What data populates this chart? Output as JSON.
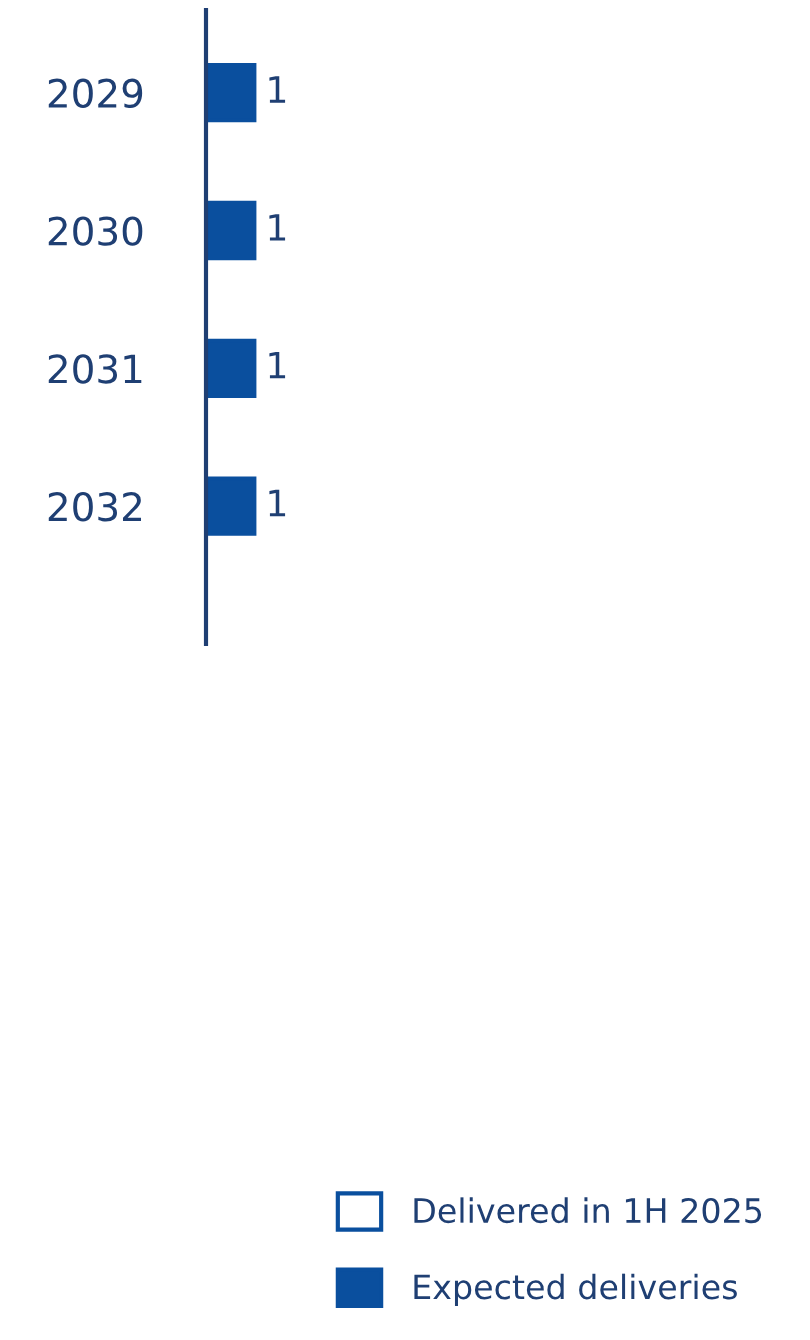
{
  "chart_data": {
    "type": "bar",
    "orientation": "horizontal",
    "categories": [
      "2029",
      "2030",
      "2031",
      "2032"
    ],
    "series": [
      {
        "name": "Delivered in 1H 2025",
        "color": "#ffffff",
        "values": [
          null,
          null,
          null,
          null
        ]
      },
      {
        "name": "Expected deliveries",
        "color": "#0a4f9e",
        "values": [
          1,
          1,
          1,
          1
        ]
      }
    ],
    "data_labels": true,
    "legend": "bottom right",
    "grid": false
  }
}
